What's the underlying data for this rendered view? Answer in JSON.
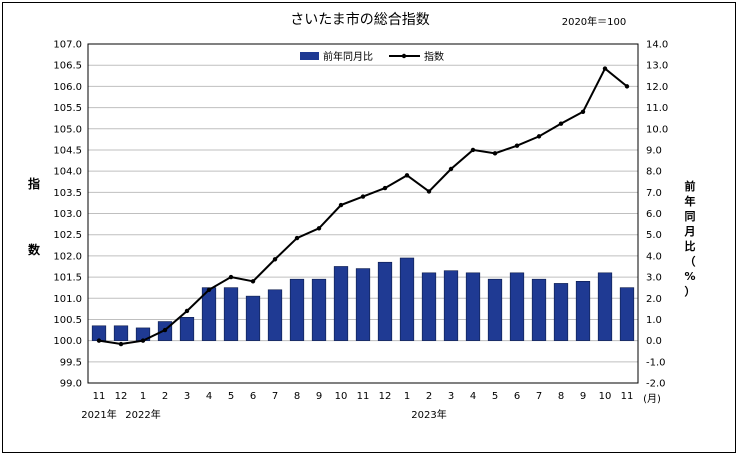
{
  "chart_data": {
    "type": "bar+line",
    "title": "さいたま市の総合指数",
    "base_note": "2020年＝100",
    "left_axis_label": "指数",
    "right_axis_label": "前年同月比（%）",
    "legend": {
      "bar": "前年同月比",
      "line": "指数"
    },
    "categories": [
      "11",
      "12",
      "1",
      "2",
      "3",
      "4",
      "5",
      "6",
      "7",
      "8",
      "9",
      "10",
      "11",
      "12",
      "1",
      "2",
      "3",
      "4",
      "5",
      "6",
      "7",
      "8",
      "9",
      "10",
      "11"
    ],
    "month_unit": "(月)",
    "year_labels": [
      {
        "text": "2021年",
        "at_index": 0
      },
      {
        "text": "2022年",
        "at_index": 2
      },
      {
        "text": "2023年",
        "at_index": 15
      }
    ],
    "left_axis": {
      "min": 99.0,
      "max": 107.0,
      "step": 0.5
    },
    "right_axis": {
      "min": -2.0,
      "max": 14.0,
      "step": 1.0
    },
    "bar_series": {
      "name": "前年同月比",
      "color": "#1f3a93",
      "values": [
        0.7,
        0.7,
        0.6,
        0.9,
        1.1,
        2.5,
        2.5,
        2.1,
        2.4,
        2.9,
        2.9,
        3.5,
        3.4,
        3.7,
        3.9,
        3.2,
        3.3,
        3.2,
        2.9,
        3.2,
        2.9,
        2.7,
        2.8,
        3.2,
        2.5
      ]
    },
    "line_series": {
      "name": "指数",
      "color": "#000000",
      "values": [
        100.0,
        99.92,
        100.0,
        100.25,
        100.7,
        101.2,
        101.5,
        101.4,
        101.92,
        102.42,
        102.65,
        103.2,
        103.4,
        103.6,
        103.9,
        103.52,
        104.05,
        104.5,
        104.42,
        104.6,
        104.82,
        105.12,
        105.4,
        106.42,
        106.0
      ]
    },
    "grid": true,
    "legend_position": "top-center"
  },
  "colors": {
    "bar": "#1f3a93",
    "line": "#000000",
    "negative_tick": "#c00000",
    "grid": "#bfbfbf"
  }
}
